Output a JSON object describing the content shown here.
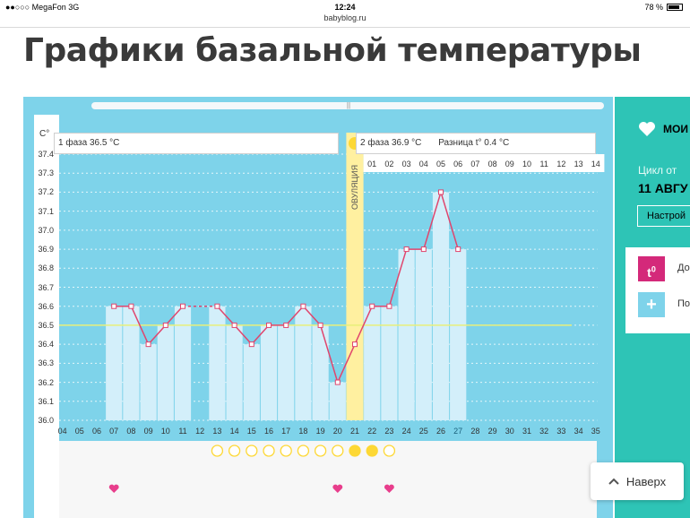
{
  "status_bar": {
    "carrier": "●●○○○ MegaFon   3G",
    "time": "12:24",
    "battery": "78 %"
  },
  "url": "babyblog.ru",
  "page": {
    "title": "Графики базальной температуры"
  },
  "chart_data": {
    "type": "line",
    "y_unit": "C°",
    "ylim": [
      36.0,
      37.4
    ],
    "y_ticks": [
      "37.4",
      "37.3",
      "37.2",
      "37.1",
      "37.0",
      "36.9",
      "36.8",
      "36.7",
      "36.6",
      "36.5",
      "36.4",
      "36.3",
      "36.2",
      "36.1",
      "36.0"
    ],
    "x_ticks": [
      "04",
      "05",
      "06",
      "07",
      "08",
      "09",
      "10",
      "11",
      "12",
      "13",
      "14",
      "15",
      "16",
      "17",
      "18",
      "19",
      "20",
      "21",
      "22",
      "23",
      "24",
      "25",
      "26",
      "27",
      "28",
      "29",
      "30",
      "31",
      "32",
      "33",
      "34",
      "35"
    ],
    "cycle_day_labels": [
      "01",
      "02",
      "03",
      "04",
      "05",
      "06",
      "07",
      "08",
      "09",
      "10",
      "11",
      "12",
      "13",
      "14"
    ],
    "series": [
      {
        "values": [
          {
            "x": "07",
            "y": 36.6
          },
          {
            "x": "08",
            "y": 36.6
          },
          {
            "x": "09",
            "y": 36.4
          },
          {
            "x": "10",
            "y": 36.5
          },
          {
            "x": "11",
            "y": 36.6
          },
          {
            "x": "13",
            "y": 36.6
          },
          {
            "x": "14",
            "y": 36.5
          },
          {
            "x": "15",
            "y": 36.4
          },
          {
            "x": "16",
            "y": 36.5
          },
          {
            "x": "17",
            "y": 36.5
          },
          {
            "x": "18",
            "y": 36.6
          },
          {
            "x": "19",
            "y": 36.5
          },
          {
            "x": "20",
            "y": 36.2
          },
          {
            "x": "21",
            "y": 36.4
          },
          {
            "x": "22",
            "y": 36.6
          },
          {
            "x": "23",
            "y": 36.6
          },
          {
            "x": "24",
            "y": 36.9
          },
          {
            "x": "25",
            "y": 36.9
          },
          {
            "x": "26",
            "y": 37.2
          },
          {
            "x": "27",
            "y": 36.9
          }
        ]
      }
    ],
    "gap_dashed": {
      "from": "11",
      "to": "13"
    },
    "baseline": 36.5,
    "ovulation_day": "21",
    "today": "27",
    "phase1_label": "1 фаза 36.5 °C",
    "phase2_label": "2 фаза 36.9 °C",
    "difference_label": "Разница t° 0.4 °C",
    "ovulation_label": "ОВУЛЯЦИЯ",
    "circles": [
      {
        "x": "13",
        "filled": false
      },
      {
        "x": "14",
        "filled": false
      },
      {
        "x": "15",
        "filled": false
      },
      {
        "x": "16",
        "filled": false
      },
      {
        "x": "17",
        "filled": false
      },
      {
        "x": "18",
        "filled": false
      },
      {
        "x": "19",
        "filled": false
      },
      {
        "x": "20",
        "filled": false
      },
      {
        "x": "21",
        "filled": true
      },
      {
        "x": "22",
        "filled": true
      },
      {
        "x": "23",
        "filled": false
      }
    ],
    "hearts": [
      "07",
      "20",
      "23"
    ],
    "colors": {
      "plot_bg": "#7ed3ea",
      "bar": "#d3effa",
      "line": "#e0456d",
      "baseline": "#e8ef7a",
      "ovulation": "#fff0a0",
      "sun": "#fdd835",
      "heart": "#e83e8c"
    }
  },
  "sidebar": {
    "my_label": "МОИ",
    "cycle_label": "Цикл от",
    "cycle_date": "11 АВГУ",
    "setup_button": "Настрой",
    "add_temp_label": "До",
    "add_plus_label": "По"
  },
  "to_top_button": "Наверх"
}
